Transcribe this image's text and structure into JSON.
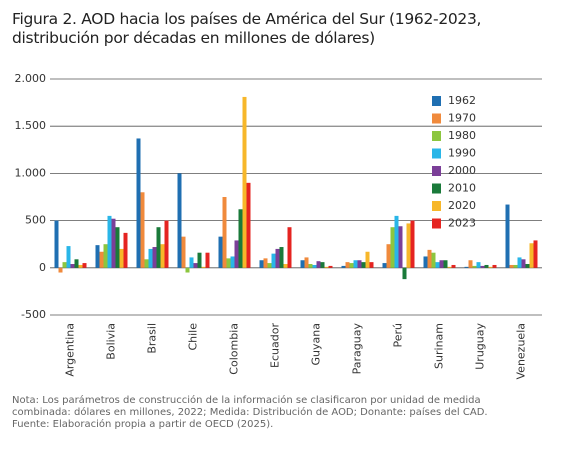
{
  "chart_data": {
    "type": "bar",
    "title": "Figura 2. AOD hacia los países de América del Sur (1962-2023, distribución por décadas en millones de dólares)",
    "categories": [
      "Argentina",
      "Bolivia",
      "Brasil",
      "Chile",
      "Colombia",
      "Ecuador",
      "Guyana",
      "Paraguay",
      "Perú",
      "Surinam",
      "Uruguay",
      "Venezuela"
    ],
    "series": [
      {
        "name": "1962",
        "color": "#1f6fb2",
        "values": [
          500,
          240,
          1370,
          1000,
          330,
          80,
          80,
          20,
          50,
          120,
          10,
          670
        ]
      },
      {
        "name": "1970",
        "color": "#f08a3c",
        "values": [
          -50,
          170,
          800,
          330,
          750,
          100,
          110,
          60,
          250,
          190,
          80,
          30
        ]
      },
      {
        "name": "1980",
        "color": "#8cc63f",
        "values": [
          60,
          250,
          90,
          -50,
          100,
          50,
          40,
          50,
          430,
          160,
          20,
          30
        ]
      },
      {
        "name": "1990",
        "color": "#29b6e8",
        "values": [
          230,
          550,
          200,
          110,
          120,
          150,
          30,
          80,
          550,
          60,
          60,
          110
        ]
      },
      {
        "name": "2000",
        "color": "#7b3f98",
        "values": [
          40,
          520,
          220,
          50,
          290,
          200,
          70,
          80,
          440,
          80,
          20,
          90
        ]
      },
      {
        "name": "2010",
        "color": "#1a7a3a",
        "values": [
          90,
          430,
          430,
          160,
          620,
          220,
          60,
          60,
          -120,
          80,
          30,
          40
        ]
      },
      {
        "name": "2020",
        "color": "#f7b72a",
        "values": [
          30,
          200,
          250,
          10,
          1810,
          40,
          10,
          170,
          470,
          10,
          10,
          260
        ]
      },
      {
        "name": "2023",
        "color": "#e52421",
        "values": [
          50,
          370,
          500,
          160,
          900,
          430,
          20,
          60,
          500,
          30,
          30,
          290
        ]
      }
    ],
    "ylim": [
      -500,
      2000
    ],
    "yticks": [
      {
        "value": 2000,
        "label": "2.000"
      },
      {
        "value": 1500,
        "label": "1.500"
      },
      {
        "value": 1000,
        "label": "1.000"
      },
      500,
      0,
      -500
    ],
    "grid": true,
    "note": "Nota: Los parámetros de construcción de la información se clasificaron por unidad de medida combinada: dólares en millones, 2022; Medida: Distribución de AOD; Donante: países del CAD.",
    "source": "Fuente: Elaboración propia a partir de OECD (2025)."
  }
}
